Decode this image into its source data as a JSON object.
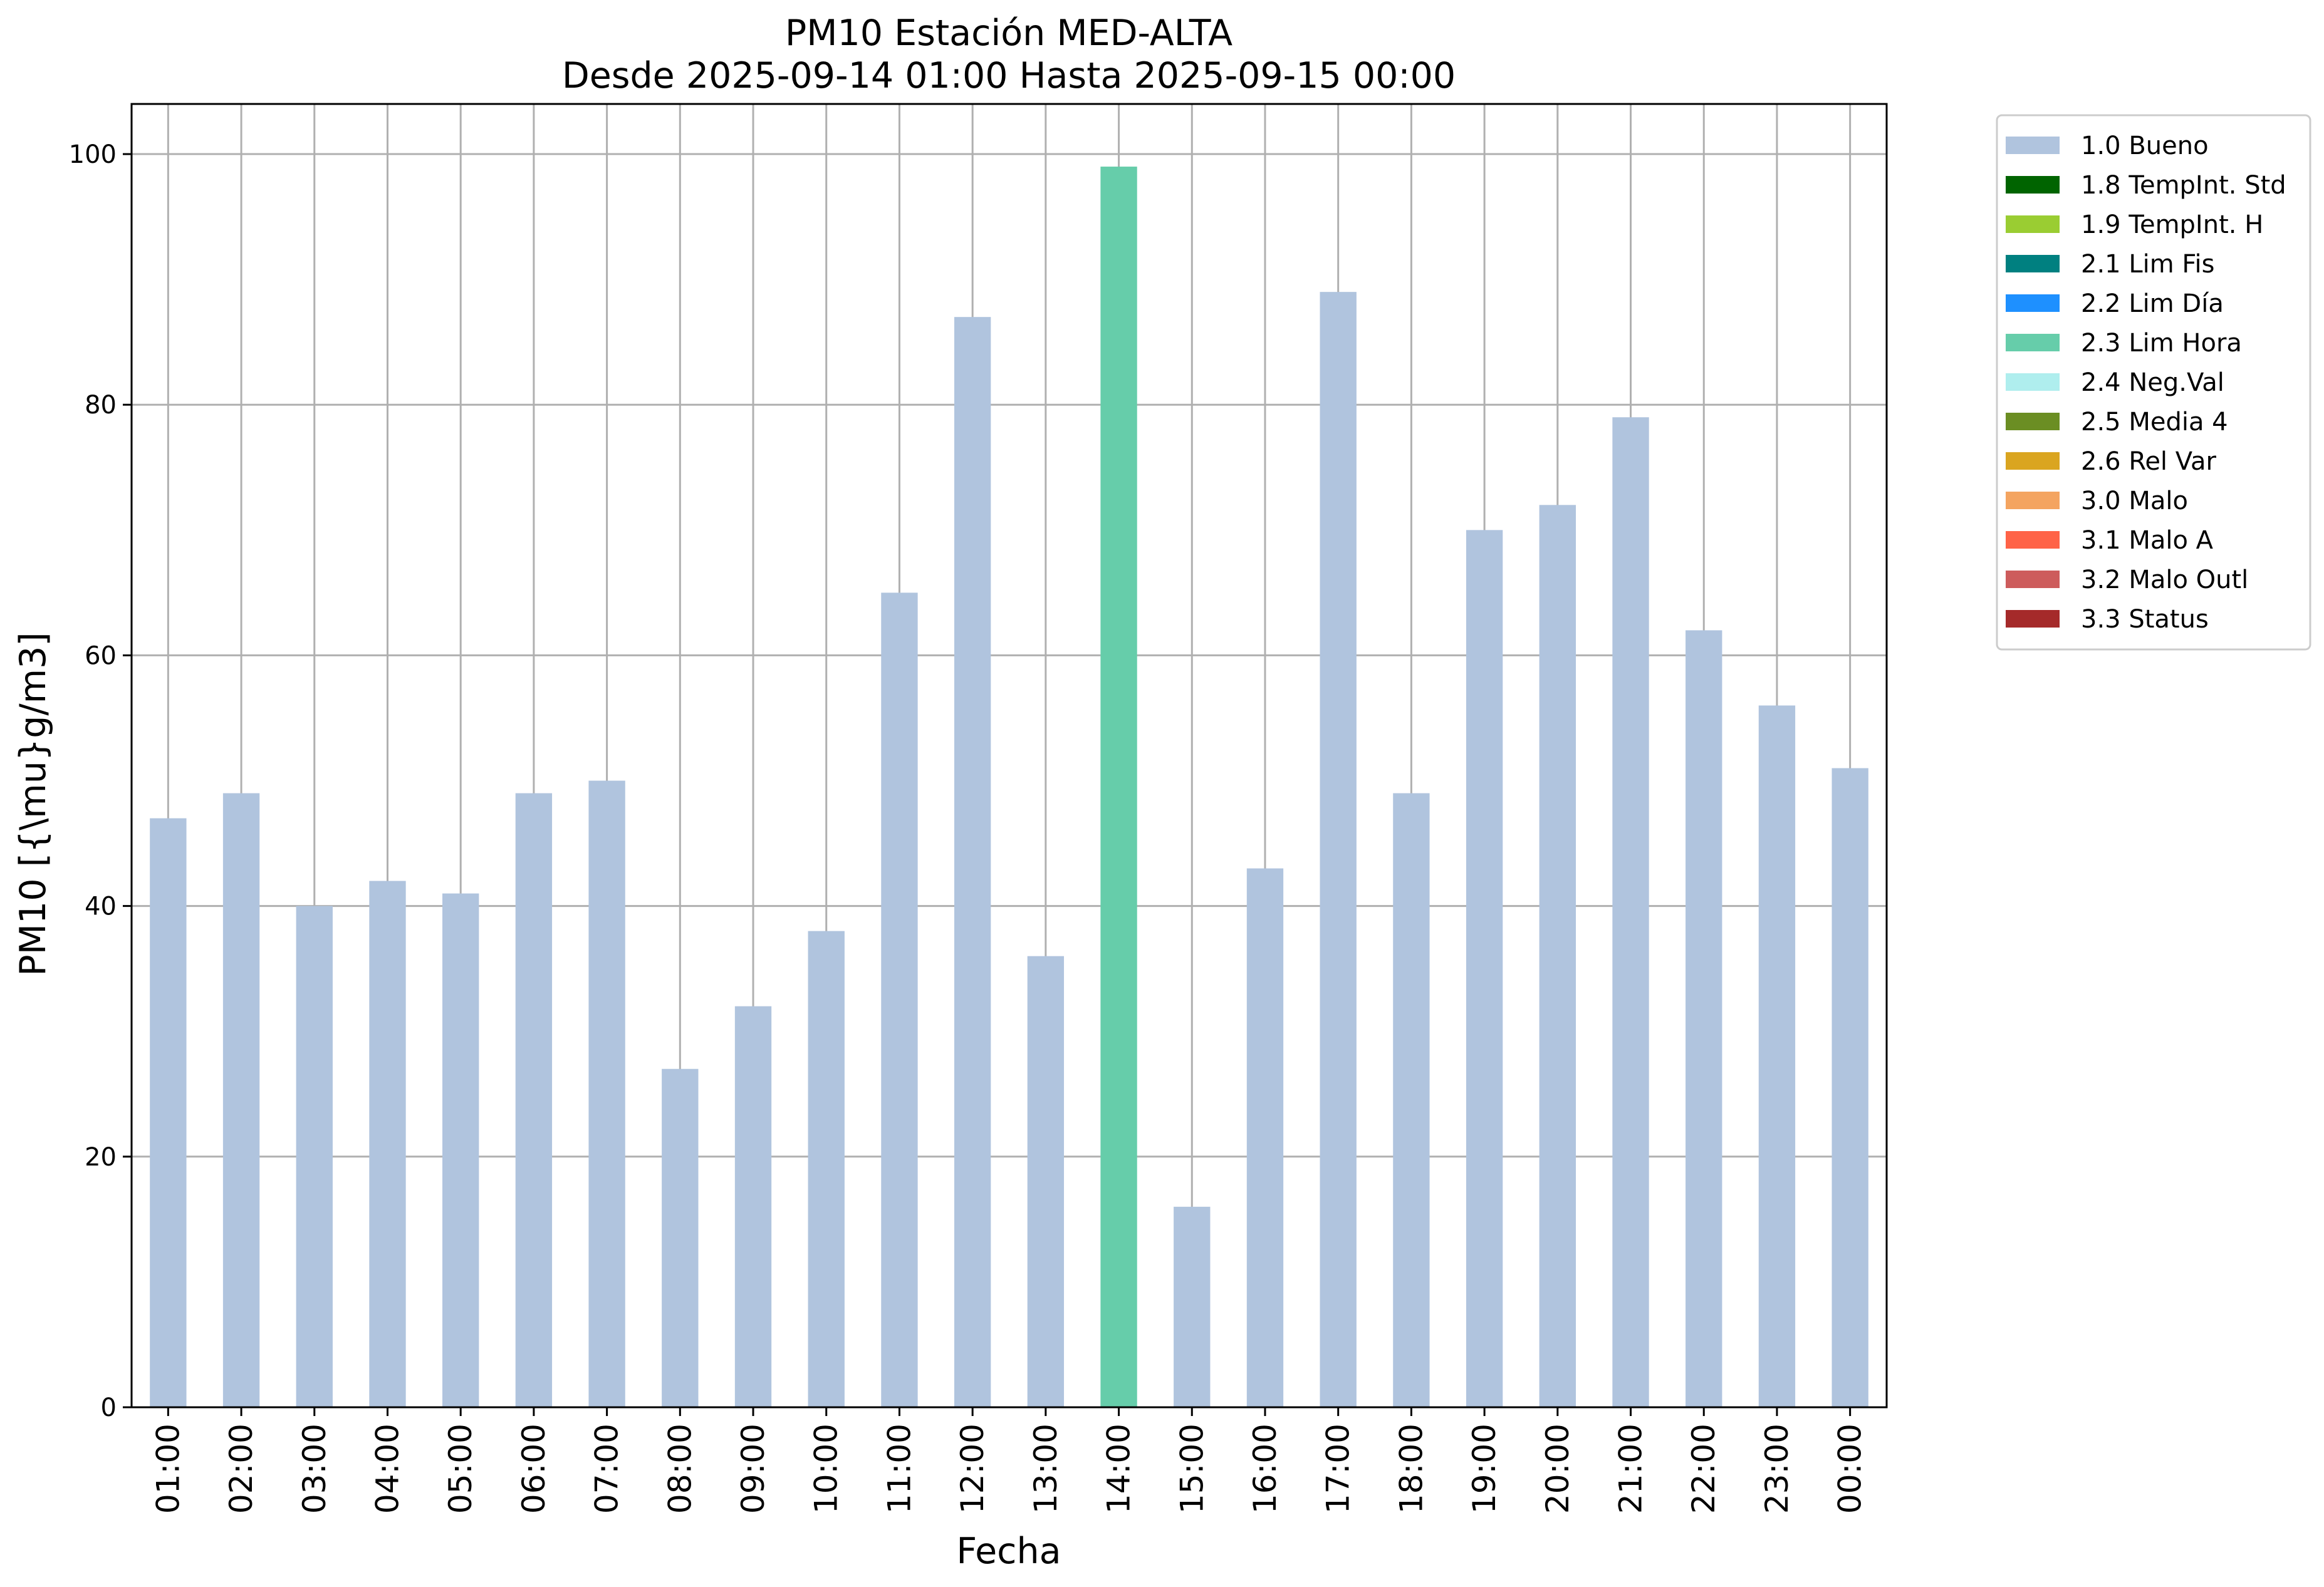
{
  "chart_data": {
    "type": "bar",
    "title": "PM10 Estación MED-ALTA",
    "subtitle": "Desde 2025-09-14 01:00 Hasta 2025-09-15 00:00",
    "xlabel": "Fecha",
    "ylabel": "PM10 [{\\mu}g/m3]",
    "ylim": [
      0,
      104
    ],
    "yticks": [
      0,
      20,
      40,
      60,
      80,
      100
    ],
    "grid": true,
    "legend_position": "outside-top-right",
    "categories": [
      "01:00",
      "02:00",
      "03:00",
      "04:00",
      "05:00",
      "06:00",
      "07:00",
      "08:00",
      "09:00",
      "10:00",
      "11:00",
      "12:00",
      "13:00",
      "14:00",
      "15:00",
      "16:00",
      "17:00",
      "18:00",
      "19:00",
      "20:00",
      "21:00",
      "22:00",
      "23:00",
      "00:00"
    ],
    "values": [
      47,
      49,
      40,
      42,
      41,
      49,
      50,
      27,
      32,
      38,
      65,
      87,
      36,
      99,
      16,
      43,
      89,
      49,
      70,
      72,
      79,
      62,
      56,
      51
    ],
    "flags": [
      "1.0 Bueno",
      "1.0 Bueno",
      "1.0 Bueno",
      "1.0 Bueno",
      "1.0 Bueno",
      "1.0 Bueno",
      "1.0 Bueno",
      "1.0 Bueno",
      "1.0 Bueno",
      "1.0 Bueno",
      "1.0 Bueno",
      "1.0 Bueno",
      "1.0 Bueno",
      "2.3 Lim Hora",
      "1.0 Bueno",
      "1.0 Bueno",
      "1.0 Bueno",
      "1.0 Bueno",
      "1.0 Bueno",
      "1.0 Bueno",
      "1.0 Bueno",
      "1.0 Bueno",
      "1.0 Bueno",
      "1.0 Bueno"
    ],
    "legend": [
      {
        "label": "1.0 Bueno",
        "color": "#b0c4de"
      },
      {
        "label": "1.8 TempInt. Std",
        "color": "#006400"
      },
      {
        "label": "1.9 TempInt. H",
        "color": "#9acd32"
      },
      {
        "label": "2.1 Lim Fis",
        "color": "#008080"
      },
      {
        "label": "2.2 Lim Día",
        "color": "#1e90ff"
      },
      {
        "label": "2.3 Lim Hora",
        "color": "#66cdaa"
      },
      {
        "label": "2.4 Neg.Val",
        "color": "#afeeee"
      },
      {
        "label": "2.5 Media 4",
        "color": "#6b8e23"
      },
      {
        "label": "2.6 Rel Var",
        "color": "#daa520"
      },
      {
        "label": "3.0 Malo",
        "color": "#f4a460"
      },
      {
        "label": "3.1 Malo A",
        "color": "#ff6347"
      },
      {
        "label": "3.2 Malo Outl",
        "color": "#cd5c5c"
      },
      {
        "label": "3.3 Status",
        "color": "#a52a2a"
      }
    ]
  }
}
